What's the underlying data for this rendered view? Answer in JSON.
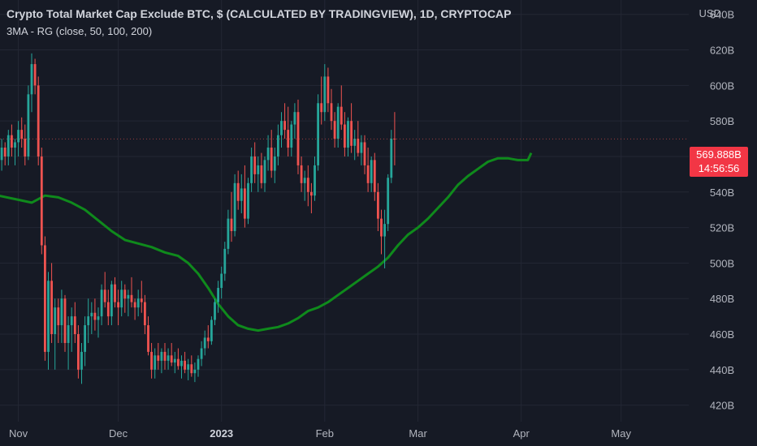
{
  "header": {
    "title": "Crypto Total Market Cap Exclude BTC, $ (CALCULATED BY TRADINGVIEW), 1D, CRYPTOCAP",
    "indicator": "3MA - RG (close, 50, 100, 200)",
    "currency": "USD"
  },
  "price_badge": {
    "value": "569.888B",
    "countdown": "14:56:56"
  },
  "colors": {
    "background": "#161a25",
    "grid": "#232734",
    "up": "#26a69a",
    "down": "#ef5350",
    "ma": "#0f8a1c",
    "badge": "#f23645"
  },
  "chart_data": {
    "type": "candlestick",
    "title": "Crypto Total Market Cap Exclude BTC, $ (CALCULATED BY TRADINGVIEW), 1D, CRYPTOCAP",
    "y_unit": "B USD",
    "ylim": [
      410,
      650
    ],
    "y_ticks": [
      420,
      440,
      460,
      480,
      500,
      520,
      540,
      560,
      580,
      600,
      620,
      640
    ],
    "y_tick_labels": [
      "420B",
      "440B",
      "460B",
      "480B",
      "500B",
      "520B",
      "540B",
      "560B",
      "580B",
      "600B",
      "620B",
      "640B"
    ],
    "x_range": [
      "2022-10-26",
      "2023-05-13"
    ],
    "x_ticks": [
      {
        "date": "2022-11-01",
        "label": "Nov",
        "bold": false
      },
      {
        "date": "2022-12-01",
        "label": "Dec",
        "bold": false
      },
      {
        "date": "2023-01-01",
        "label": "2023",
        "bold": true
      },
      {
        "date": "2023-02-01",
        "label": "Feb",
        "bold": false
      },
      {
        "date": "2023-03-01",
        "label": "Mar",
        "bold": false
      },
      {
        "date": "2023-04-01",
        "label": "Apr",
        "bold": false
      },
      {
        "date": "2023-05-01",
        "label": "May",
        "bold": false
      }
    ],
    "grid": true,
    "last_price": 569.888,
    "first_date": "2022-10-26",
    "candles": [
      [
        550,
        560,
        545,
        558
      ],
      [
        558,
        570,
        552,
        565
      ],
      [
        565,
        568,
        555,
        560
      ],
      [
        560,
        575,
        555,
        572
      ],
      [
        572,
        578,
        560,
        565
      ],
      [
        565,
        570,
        555,
        568
      ],
      [
        568,
        580,
        560,
        575
      ],
      [
        575,
        582,
        565,
        570
      ],
      [
        570,
        578,
        555,
        560
      ],
      [
        560,
        600,
        558,
        595
      ],
      [
        595,
        618,
        585,
        612
      ],
      [
        612,
        615,
        595,
        600
      ],
      [
        600,
        605,
        555,
        560
      ],
      [
        560,
        565,
        505,
        510
      ],
      [
        510,
        515,
        445,
        450
      ],
      [
        450,
        495,
        440,
        490
      ],
      [
        490,
        500,
        455,
        460
      ],
      [
        460,
        480,
        440,
        475
      ],
      [
        475,
        480,
        455,
        465
      ],
      [
        465,
        485,
        455,
        480
      ],
      [
        480,
        482,
        450,
        455
      ],
      [
        455,
        470,
        440,
        465
      ],
      [
        465,
        475,
        450,
        470
      ],
      [
        470,
        478,
        455,
        460
      ],
      [
        460,
        465,
        435,
        440
      ],
      [
        440,
        455,
        432,
        450
      ],
      [
        450,
        470,
        442,
        465
      ],
      [
        465,
        480,
        455,
        470
      ],
      [
        470,
        478,
        460,
        472
      ],
      [
        472,
        480,
        462,
        468
      ],
      [
        468,
        475,
        458,
        470
      ],
      [
        470,
        488,
        465,
        485
      ],
      [
        485,
        495,
        475,
        478
      ],
      [
        478,
        485,
        465,
        470
      ],
      [
        470,
        490,
        465,
        488
      ],
      [
        488,
        492,
        475,
        478
      ],
      [
        478,
        485,
        465,
        475
      ],
      [
        475,
        490,
        470,
        485
      ],
      [
        485,
        488,
        472,
        480
      ],
      [
        480,
        485,
        470,
        482
      ],
      [
        482,
        492,
        475,
        478
      ],
      [
        478,
        480,
        468,
        475
      ],
      [
        475,
        485,
        470,
        480
      ],
      [
        480,
        490,
        472,
        478
      ],
      [
        478,
        482,
        460,
        465
      ],
      [
        465,
        470,
        448,
        450
      ],
      [
        450,
        455,
        435,
        440
      ],
      [
        440,
        452,
        435,
        448
      ],
      [
        448,
        455,
        440,
        445
      ],
      [
        445,
        452,
        438,
        450
      ],
      [
        450,
        455,
        440,
        445
      ],
      [
        445,
        452,
        440,
        448
      ],
      [
        448,
        455,
        442,
        444
      ],
      [
        444,
        450,
        438,
        446
      ],
      [
        446,
        452,
        440,
        442
      ],
      [
        442,
        448,
        435,
        445
      ],
      [
        445,
        450,
        438,
        440
      ],
      [
        440,
        446,
        434,
        443
      ],
      [
        443,
        448,
        436,
        438
      ],
      [
        438,
        444,
        433,
        440
      ],
      [
        440,
        448,
        436,
        446
      ],
      [
        446,
        456,
        442,
        452
      ],
      [
        452,
        462,
        448,
        458
      ],
      [
        458,
        465,
        452,
        456
      ],
      [
        456,
        470,
        454,
        468
      ],
      [
        468,
        480,
        465,
        478
      ],
      [
        478,
        490,
        472,
        486
      ],
      [
        486,
        498,
        480,
        494
      ],
      [
        494,
        512,
        490,
        508
      ],
      [
        508,
        530,
        505,
        525
      ],
      [
        525,
        540,
        512,
        518
      ],
      [
        518,
        550,
        515,
        545
      ],
      [
        545,
        552,
        530,
        535
      ],
      [
        535,
        550,
        528,
        542
      ],
      [
        542,
        555,
        520,
        525
      ],
      [
        525,
        548,
        522,
        545
      ],
      [
        545,
        565,
        540,
        560
      ],
      [
        560,
        568,
        545,
        550
      ],
      [
        550,
        560,
        540,
        555
      ],
      [
        555,
        562,
        542,
        545
      ],
      [
        545,
        560,
        540,
        558
      ],
      [
        558,
        572,
        552,
        565
      ],
      [
        565,
        575,
        548,
        552
      ],
      [
        552,
        565,
        545,
        560
      ],
      [
        560,
        578,
        555,
        572
      ],
      [
        572,
        585,
        565,
        580
      ],
      [
        580,
        590,
        570,
        575
      ],
      [
        575,
        588,
        560,
        565
      ],
      [
        565,
        580,
        560,
        578
      ],
      [
        578,
        590,
        570,
        585
      ],
      [
        585,
        592,
        550,
        555
      ],
      [
        555,
        560,
        540,
        545
      ],
      [
        545,
        552,
        535,
        548
      ],
      [
        548,
        555,
        532,
        540
      ],
      [
        540,
        545,
        528,
        538
      ],
      [
        538,
        560,
        535,
        555
      ],
      [
        555,
        595,
        552,
        590
      ],
      [
        590,
        605,
        578,
        585
      ],
      [
        585,
        612,
        580,
        605
      ],
      [
        605,
        610,
        585,
        590
      ],
      [
        590,
        598,
        575,
        580
      ],
      [
        580,
        585,
        565,
        570
      ],
      [
        570,
        590,
        565,
        588
      ],
      [
        588,
        600,
        575,
        578
      ],
      [
        578,
        585,
        560,
        565
      ],
      [
        565,
        582,
        560,
        580
      ],
      [
        580,
        590,
        562,
        566
      ],
      [
        566,
        575,
        558,
        570
      ],
      [
        570,
        580,
        560,
        562
      ],
      [
        562,
        572,
        555,
        568
      ],
      [
        568,
        572,
        550,
        555
      ],
      [
        555,
        565,
        540,
        545
      ],
      [
        545,
        560,
        540,
        558
      ],
      [
        558,
        562,
        535,
        540
      ],
      [
        540,
        545,
        518,
        525
      ],
      [
        525,
        530,
        505,
        515
      ],
      [
        515,
        530,
        497,
        522
      ],
      [
        522,
        550,
        518,
        548
      ],
      [
        548,
        575,
        545,
        570
      ],
      [
        570,
        585,
        555,
        569.888
      ]
    ],
    "series": [
      {
        "name": "MA",
        "type": "line",
        "points": [
          [
            0,
            538
          ],
          [
            5,
            536
          ],
          [
            10,
            534
          ],
          [
            14,
            538
          ],
          [
            18,
            537
          ],
          [
            22,
            534
          ],
          [
            26,
            530
          ],
          [
            30,
            524
          ],
          [
            34,
            518
          ],
          [
            38,
            513
          ],
          [
            42,
            511
          ],
          [
            46,
            509
          ],
          [
            50,
            506
          ],
          [
            54,
            504
          ],
          [
            57,
            500
          ],
          [
            60,
            494
          ],
          [
            63,
            486
          ],
          [
            66,
            477
          ],
          [
            69,
            470
          ],
          [
            72,
            465
          ],
          [
            75,
            463
          ],
          [
            78,
            462
          ],
          [
            81,
            463
          ],
          [
            84,
            464
          ],
          [
            87,
            466
          ],
          [
            90,
            469
          ],
          [
            93,
            473
          ],
          [
            96,
            475
          ],
          [
            99,
            478
          ],
          [
            102,
            482
          ],
          [
            105,
            486
          ],
          [
            108,
            490
          ],
          [
            111,
            494
          ],
          [
            114,
            498
          ],
          [
            117,
            503
          ],
          [
            120,
            510
          ],
          [
            123,
            516
          ],
          [
            126,
            520
          ],
          [
            129,
            525
          ],
          [
            132,
            531
          ],
          [
            135,
            537
          ],
          [
            138,
            544
          ],
          [
            141,
            549
          ],
          [
            144,
            553
          ],
          [
            147,
            557
          ],
          [
            150,
            559
          ],
          [
            153,
            559
          ],
          [
            156,
            558
          ],
          [
            159,
            558
          ],
          [
            160,
            562
          ]
        ]
      }
    ]
  }
}
